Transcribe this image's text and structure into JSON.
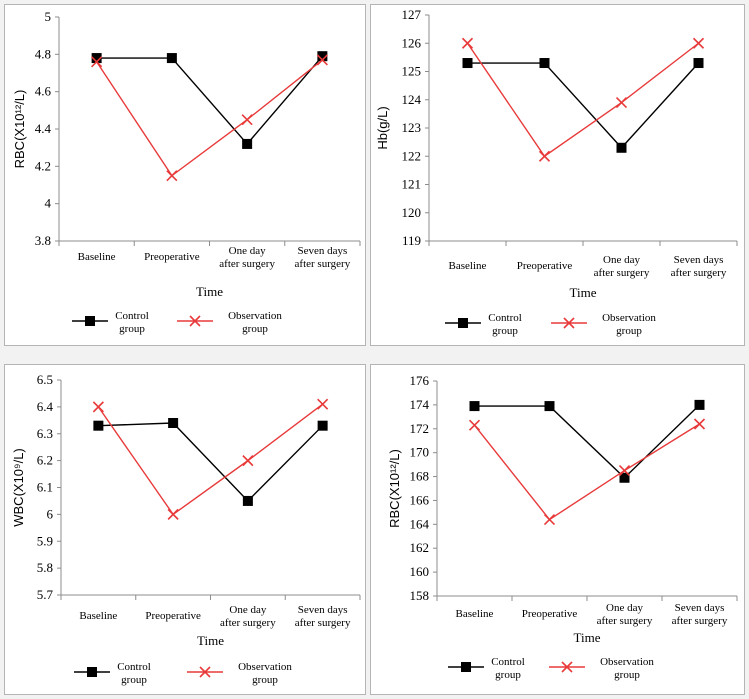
{
  "chart_data": [
    {
      "type": "line",
      "ylabel": "RBC(X10¹²/L)",
      "xlabel": "Time",
      "ylim": [
        3.8,
        5
      ],
      "yticks": [
        "3.8",
        "4",
        "4.2",
        "4.4",
        "4.6",
        "4.8",
        "5"
      ],
      "categories": [
        [
          "Baseline"
        ],
        [
          "Preoperative"
        ],
        [
          "One day",
          "after surgery"
        ],
        [
          "Seven days",
          "after surgery"
        ]
      ],
      "series": [
        {
          "name": [
            "Control",
            "group"
          ],
          "color": "#000000",
          "marker": "square",
          "values": [
            4.78,
            4.78,
            4.32,
            4.79
          ]
        },
        {
          "name": [
            "Observation",
            "group"
          ],
          "color": "#e83a3a",
          "marker": "x",
          "values": [
            4.76,
            4.15,
            4.45,
            4.77
          ]
        }
      ],
      "grid": false,
      "legend": "bottom"
    },
    {
      "type": "line",
      "ylabel": "Hb(g/L)",
      "xlabel": "Time",
      "ylim": [
        119,
        127
      ],
      "yticks": [
        "119",
        "120",
        "121",
        "122",
        "123",
        "124",
        "125",
        "126",
        "127"
      ],
      "categories": [
        [
          "Baseline"
        ],
        [
          "Preoperative"
        ],
        [
          "One day",
          "after surgery"
        ],
        [
          "Seven days",
          "after surgery"
        ]
      ],
      "series": [
        {
          "name": [
            "Control",
            "group"
          ],
          "color": "#000000",
          "marker": "square",
          "values": [
            125.3,
            125.3,
            122.3,
            125.3
          ]
        },
        {
          "name": [
            "Observation",
            "group"
          ],
          "color": "#e83a3a",
          "marker": "x",
          "values": [
            126.0,
            122.0,
            123.9,
            126.0
          ]
        }
      ],
      "grid": false,
      "legend": "bottom"
    },
    {
      "type": "line",
      "ylabel": "WBC(X10⁹/L)",
      "xlabel": "Time",
      "ylim": [
        5.7,
        6.5
      ],
      "yticks": [
        "5.7",
        "5.8",
        "5.9",
        "6",
        "6.1",
        "6.2",
        "6.3",
        "6.4",
        "6.5"
      ],
      "categories": [
        [
          "Baseline"
        ],
        [
          "Preoperative"
        ],
        [
          "One day",
          "after surgery"
        ],
        [
          "Seven days",
          "after surgery"
        ]
      ],
      "series": [
        {
          "name": [
            "Control",
            "group"
          ],
          "color": "#000000",
          "marker": "square",
          "values": [
            6.33,
            6.34,
            6.05,
            6.33
          ]
        },
        {
          "name": [
            "Observation",
            "group"
          ],
          "color": "#e83a3a",
          "marker": "x",
          "values": [
            6.4,
            6.0,
            6.2,
            6.41
          ]
        }
      ],
      "grid": false,
      "legend": "bottom"
    },
    {
      "type": "line",
      "ylabel": "RBC(X10¹²/L)",
      "xlabel": "Time",
      "ylim": [
        158,
        176
      ],
      "yticks": [
        "158",
        "160",
        "162",
        "164",
        "166",
        "168",
        "170",
        "172",
        "174",
        "176"
      ],
      "categories": [
        [
          "Baseline"
        ],
        [
          "Preoperative"
        ],
        [
          "One day",
          "after surgery"
        ],
        [
          "Seven days",
          "after surgery"
        ]
      ],
      "series": [
        {
          "name": [
            "Control",
            "group"
          ],
          "color": "#000000",
          "marker": "square",
          "values": [
            173.9,
            173.9,
            167.9,
            174.0
          ]
        },
        {
          "name": [
            "Observation",
            "group"
          ],
          "color": "#e83a3a",
          "marker": "x",
          "values": [
            172.3,
            164.4,
            168.5,
            172.4
          ]
        }
      ],
      "grid": false,
      "legend": "bottom"
    }
  ]
}
